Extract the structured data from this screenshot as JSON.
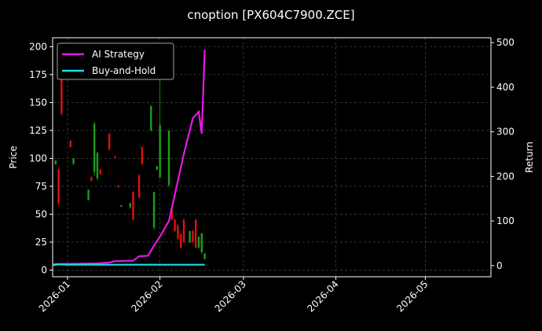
{
  "chart_data": {
    "type": "candlestick",
    "title": "cnoption [PX604C7900.ZCE]",
    "ylabel": "Price",
    "y2label": "Return",
    "candles": {
      "x": [
        -4,
        -3,
        -2,
        1,
        2,
        7,
        8,
        9,
        10,
        11,
        14,
        16,
        17,
        18,
        21,
        22,
        24,
        25,
        28,
        29,
        30,
        31,
        34,
        35,
        36,
        37,
        38,
        39,
        41,
        42,
        43,
        44,
        45,
        46
      ],
      "open": [
        95,
        90,
        175,
        116,
        95,
        63,
        83,
        88,
        82,
        90,
        122,
        102,
        75,
        57,
        56,
        70,
        85,
        110,
        125,
        38,
        90,
        83,
        76,
        55,
        45,
        40,
        32,
        45,
        25,
        35,
        45,
        20,
        16,
        10
      ],
      "high": [
        98,
        92,
        178,
        116,
        100,
        72,
        84,
        133,
        106,
        91,
        123,
        102,
        76,
        58,
        60,
        71,
        86,
        111,
        147,
        70,
        93,
        172,
        125,
        56,
        46,
        41,
        33,
        46,
        35,
        36,
        46,
        30,
        33,
        15
      ],
      "low": [
        94,
        58,
        138,
        110,
        94,
        62,
        79,
        84,
        80,
        85,
        107,
        100,
        74,
        56,
        55,
        44,
        64,
        94,
        124,
        36,
        89,
        82,
        74,
        44,
        34,
        27,
        19,
        24,
        24,
        24,
        19,
        19,
        14,
        9
      ],
      "close": [
        98,
        60,
        140,
        110,
        100,
        72,
        80,
        131,
        105,
        86,
        108,
        101,
        74,
        58,
        60,
        45,
        65,
        95,
        147,
        70,
        93,
        130,
        125,
        45,
        35,
        28,
        20,
        25,
        35,
        25,
        20,
        30,
        33,
        15
      ]
    },
    "up_color": "#1a9e1a",
    "down_color": "#e01010",
    "series": [
      {
        "name": "AI Strategy",
        "color": "#e619e6",
        "axis": "y2",
        "x": [
          -5,
          0,
          10,
          14,
          16,
          22,
          24,
          27,
          29,
          31,
          34,
          37,
          39,
          42,
          44,
          45,
          46
        ],
        "values": [
          3,
          4,
          5,
          7,
          10,
          11,
          21,
          22,
          45,
          65,
          100,
          190,
          250,
          330,
          345,
          296,
          484
        ]
      },
      {
        "name": "Buy-and-Hold",
        "color": "#19e0e6",
        "axis": "y2",
        "x": [
          -5,
          -3,
          0,
          10,
          20,
          30,
          40,
          46
        ],
        "values": [
          1,
          3,
          2,
          2,
          2,
          2,
          2,
          2
        ]
      }
    ],
    "xlim": [
      -5,
      142
    ],
    "xticks": [
      {
        "value": 0,
        "label": "2026-01"
      },
      {
        "value": 31,
        "label": "2026-02"
      },
      {
        "value": 59,
        "label": "2026-03"
      },
      {
        "value": 90,
        "label": "2026-04"
      },
      {
        "value": 120,
        "label": "2026-05"
      }
    ],
    "ylim": [
      -6,
      208
    ],
    "yticks": [
      0,
      25,
      50,
      75,
      100,
      125,
      150,
      175,
      200
    ],
    "y2lim": [
      -25,
      511
    ],
    "y2ticks": [
      0,
      100,
      200,
      300,
      400,
      500
    ],
    "grid": true,
    "legend": "upper left"
  }
}
